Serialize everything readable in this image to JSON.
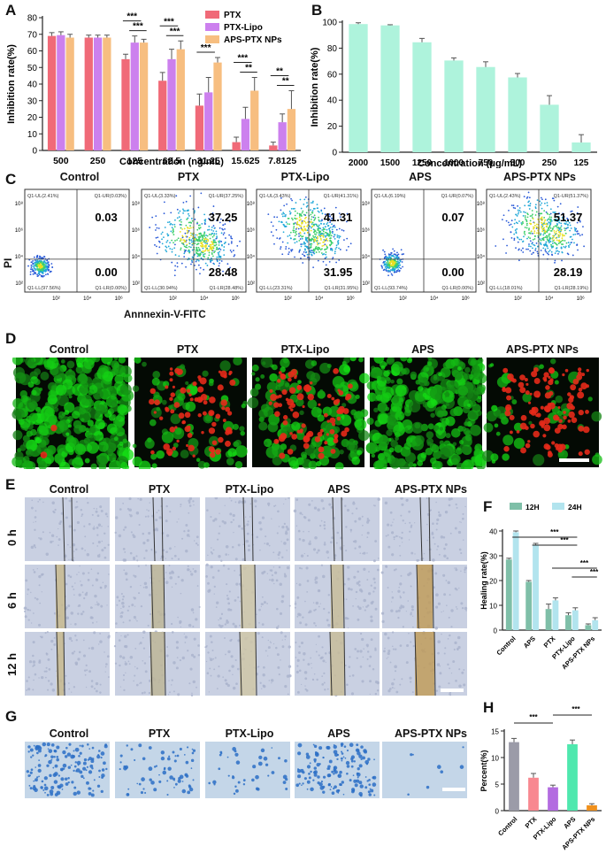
{
  "panels": {
    "A": {
      "letter": "A"
    },
    "B": {
      "letter": "B"
    },
    "C": {
      "letter": "C"
    },
    "D": {
      "letter": "D"
    },
    "E": {
      "letter": "E"
    },
    "F": {
      "letter": "F"
    },
    "G": {
      "letter": "G"
    },
    "H": {
      "letter": "H"
    }
  },
  "groups": [
    "Control",
    "PTX",
    "PTX-Lipo",
    "APS",
    "APS-PTX NPs"
  ],
  "flow": {
    "ylabel": "PI",
    "xlabel": "Annnexin-V-FITC",
    "quadrants": [
      {
        "ul": "Q1-UL(2.41%)",
        "ur": "Q1-UR(0.03%)",
        "ll": "Q1-LL(97.56%)",
        "lr": "Q1-LR(0.00%)",
        "upper": "0.03",
        "lower": "0.00"
      },
      {
        "ul": "Q1-UL(3.33%)",
        "ur": "Q1-UR(37.25%)",
        "ll": "Q1-LL(30.94%)",
        "lr": "Q1-LR(28.48%)",
        "upper": "37.25",
        "lower": "28.48"
      },
      {
        "ul": "Q1-UL(3.43%)",
        "ur": "Q1-UR(41.31%)",
        "ll": "Q1-LL(23.31%)",
        "lr": "Q1-LR(31.95%)",
        "upper": "41.31",
        "lower": "31.95"
      },
      {
        "ul": "Q1-UL(6.19%)",
        "ur": "Q1-UR(0.07%)",
        "ll": "Q1-LL(93.74%)",
        "lr": "Q1-LR(0.00%)",
        "upper": "0.07",
        "lower": "0.00"
      },
      {
        "ul": "Q1-UL(2.43%)",
        "ur": "Q1-UR(51.37%)",
        "ll": "Q1-LL(18.01%)",
        "lr": "Q1-LR(28.19%)",
        "upper": "51.37",
        "lower": "28.19"
      }
    ],
    "xticks": [
      "10²",
      "10⁴",
      "10⁶"
    ],
    "yticks": [
      "10²",
      "10⁴",
      "10⁶",
      "10⁸"
    ]
  },
  "scratch": {
    "rows": [
      "0 h",
      "6 h",
      "12 h"
    ]
  },
  "chart_data": [
    {
      "id": "A",
      "type": "bar",
      "xlabel": "Concentration (ng/mL)",
      "ylabel": "Inhibition rate(%)",
      "ylim": [
        0,
        80
      ],
      "yticks": [
        0,
        10,
        20,
        30,
        40,
        50,
        60,
        70,
        80
      ],
      "categories": [
        "500",
        "250",
        "125",
        "62.5",
        "31.25",
        "15.625",
        "7.8125"
      ],
      "legend_position": "top-right",
      "series": [
        {
          "name": "PTX",
          "color": "#f06a78",
          "values": [
            69,
            68,
            55,
            42,
            27,
            5,
            3
          ],
          "err": [
            2,
            1.5,
            3,
            5,
            7,
            3,
            2
          ]
        },
        {
          "name": "PTX-Lipo",
          "color": "#cc80ee",
          "values": [
            69.5,
            68,
            65,
            55,
            35,
            19,
            17
          ],
          "err": [
            2,
            1.5,
            4,
            6,
            9,
            7,
            5
          ]
        },
        {
          "name": "APS-PTX NPs",
          "color": "#f7be80",
          "values": [
            68,
            68,
            65,
            61,
            53,
            36,
            25
          ],
          "err": [
            2,
            1.5,
            2,
            5,
            3,
            8,
            11
          ]
        }
      ],
      "significance": [
        {
          "category": "125",
          "labels": [
            "***",
            "***"
          ]
        },
        {
          "category": "62.5",
          "labels": [
            "***",
            "***"
          ]
        },
        {
          "category": "31.25",
          "labels": [
            "***"
          ]
        },
        {
          "category": "15.625",
          "labels": [
            "***",
            "**"
          ]
        },
        {
          "category": "7.8125",
          "labels": [
            "**",
            "**"
          ]
        }
      ]
    },
    {
      "id": "B",
      "type": "bar",
      "xlabel": "Concentration (μg/mL)",
      "ylabel": "Inhibition rate(%)",
      "ylim": [
        0,
        100
      ],
      "yticks": [
        0,
        20,
        40,
        60,
        80,
        100
      ],
      "categories": [
        "2000",
        "1500",
        "1250",
        "1000",
        "750",
        "500",
        "250",
        "125"
      ],
      "series": [
        {
          "name": "",
          "color": "#aef3dc",
          "values": [
            98.5,
            97.5,
            84.5,
            70.5,
            65.5,
            57.5,
            36.5,
            7.5
          ],
          "err": [
            1,
            0.5,
            3,
            2,
            4,
            3,
            7,
            6
          ]
        }
      ]
    },
    {
      "id": "F",
      "type": "bar",
      "ylabel": "Healing rate(%)",
      "ylim": [
        0,
        40
      ],
      "yticks": [
        0,
        10,
        20,
        30,
        40
      ],
      "categories": [
        "Control",
        "APS",
        "PTX",
        "PTX-Lipo",
        "APS-PTX NPs"
      ],
      "legend_position": "top",
      "series": [
        {
          "name": "12H",
          "color": "#7fbfa8",
          "values": [
            28.5,
            19.5,
            8.5,
            6,
            2
          ],
          "err": [
            0.5,
            0.5,
            2,
            1,
            0.5
          ]
        },
        {
          "name": "24H",
          "color": "#b2e4ee",
          "values": [
            39.5,
            34.5,
            12,
            8,
            4
          ],
          "err": [
            0.5,
            0.5,
            1,
            1,
            1
          ]
        }
      ],
      "significance": [
        "***",
        "***",
        "***",
        "***"
      ]
    },
    {
      "id": "H",
      "type": "bar",
      "ylabel": "Percent(%)",
      "ylim": [
        0,
        15
      ],
      "yticks": [
        0,
        5,
        10,
        15
      ],
      "categories": [
        "Control",
        "PTX",
        "PTX-Lipo",
        "APS",
        "APS-PTX NPs"
      ],
      "series": [
        {
          "name": "",
          "colors": [
            "#9b9ba8",
            "#f88890",
            "#b36ce0",
            "#4fe8ae",
            "#f0901c"
          ],
          "values": [
            12.9,
            6.2,
            4.4,
            12.5,
            1.0
          ],
          "err": [
            0.7,
            0.8,
            0.4,
            0.8,
            0.3
          ]
        }
      ],
      "significance": [
        "***",
        "***"
      ]
    }
  ]
}
